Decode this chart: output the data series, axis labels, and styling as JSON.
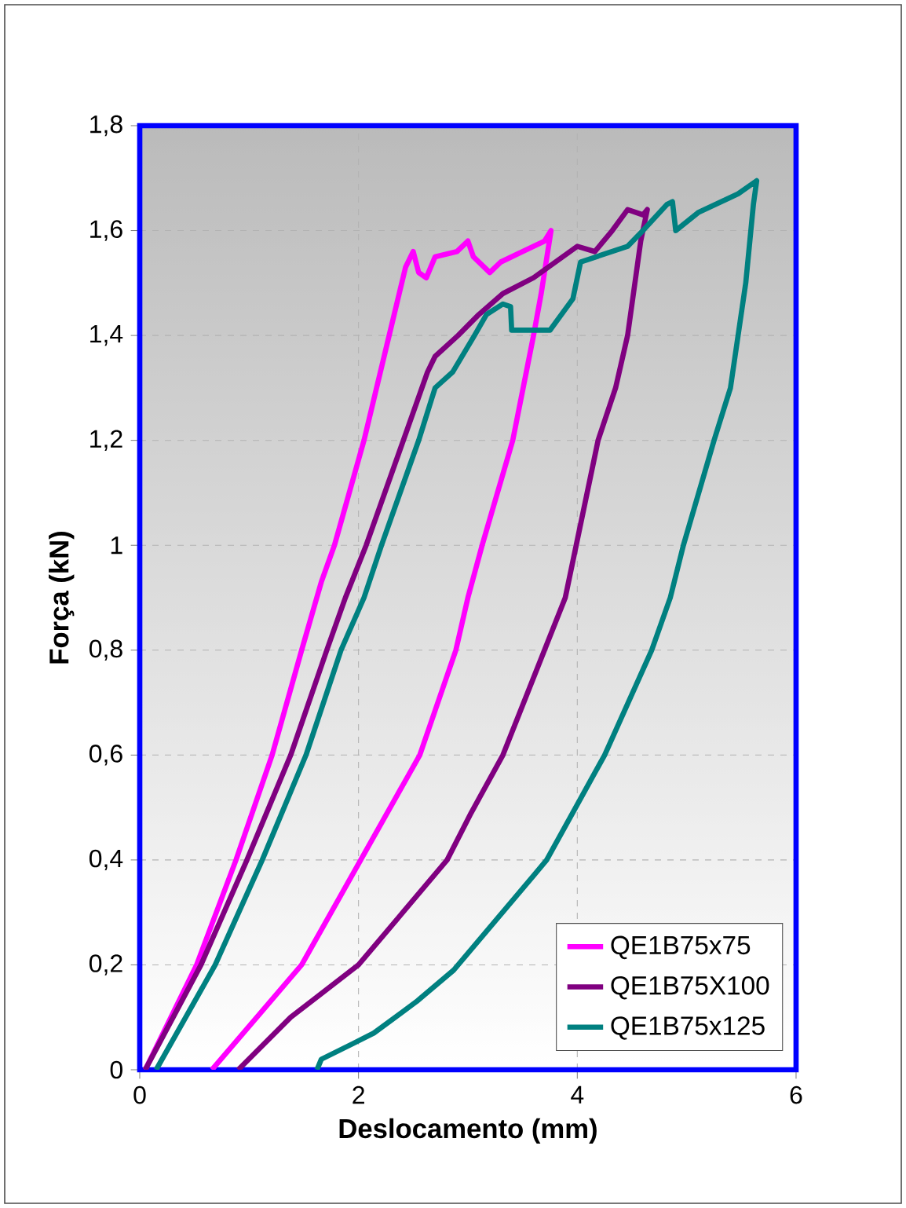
{
  "chart_data": {
    "type": "line",
    "xlabel": "Deslocamento (mm)",
    "ylabel": "Força (kN)",
    "xlim": [
      0,
      6
    ],
    "ylim": [
      0,
      1.8
    ],
    "xticks": [
      0,
      2,
      4,
      6
    ],
    "yticks": [
      0,
      {
        "value": 0.2,
        "label": "0,2"
      },
      {
        "value": 0.4,
        "label": "0,4"
      },
      {
        "value": 0.6,
        "label": "0,6"
      },
      {
        "value": 0.8,
        "label": "0,8"
      },
      1,
      {
        "value": 1.2,
        "label": "1,2"
      },
      {
        "value": 1.4,
        "label": "1,4"
      },
      {
        "value": 1.6,
        "label": "1,6"
      },
      {
        "value": 1.8,
        "label": "1,8"
      }
    ],
    "grid": true,
    "legend": "bottom right",
    "marker": "none",
    "line_style": "solid",
    "series": [
      {
        "name": "QE1B75x75",
        "color": "#ff00ff",
        "x": [
          0.05,
          0.52,
          0.88,
          1.21,
          1.48,
          1.66,
          1.78,
          2.05,
          2.28,
          2.43,
          2.5,
          2.55,
          2.62,
          2.7,
          2.9,
          3.0,
          3.05,
          3.2,
          3.3,
          3.5,
          3.7,
          3.76,
          3.67,
          3.6,
          3.41,
          3.13,
          3.0,
          2.89,
          2.56,
          2.02,
          1.48,
          0.66
        ],
        "values": [
          0,
          0.2,
          0.4,
          0.6,
          0.8,
          0.93,
          1.0,
          1.2,
          1.4,
          1.53,
          1.56,
          1.52,
          1.51,
          1.55,
          1.56,
          1.58,
          1.55,
          1.52,
          1.54,
          1.56,
          1.58,
          1.6,
          1.48,
          1.4,
          1.2,
          1.0,
          0.9,
          0.8,
          0.6,
          0.4,
          0.2,
          0
        ]
      },
      {
        "name": "QE1B75X100",
        "color": "#800080",
        "x": [
          0.05,
          0.56,
          0.98,
          1.38,
          1.71,
          1.88,
          2.07,
          2.41,
          2.63,
          2.7,
          2.91,
          3.1,
          3.32,
          3.6,
          4.0,
          4.16,
          4.32,
          4.46,
          4.6,
          4.64,
          4.58,
          4.46,
          4.35,
          4.19,
          3.99,
          3.89,
          3.7,
          3.32,
          3.03,
          2.81,
          2.0,
          1.38,
          0.9
        ],
        "values": [
          0,
          0.2,
          0.4,
          0.6,
          0.8,
          0.9,
          1.0,
          1.2,
          1.33,
          1.36,
          1.4,
          1.44,
          1.48,
          1.51,
          1.57,
          1.56,
          1.6,
          1.64,
          1.63,
          1.64,
          1.58,
          1.4,
          1.3,
          1.2,
          1.0,
          0.9,
          0.8,
          0.6,
          0.49,
          0.4,
          0.2,
          0.1,
          0
        ]
      },
      {
        "name": "QE1B75x125",
        "color": "#008080",
        "x": [
          0.15,
          0.69,
          1.12,
          1.52,
          1.84,
          2.05,
          2.21,
          2.55,
          2.7,
          2.86,
          3.06,
          3.17,
          3.32,
          3.39,
          3.4,
          3.75,
          3.96,
          4.03,
          4.46,
          4.6,
          4.82,
          4.87,
          4.9,
          5.11,
          5.47,
          5.64,
          5.61,
          5.54,
          5.4,
          5.25,
          4.97,
          4.85,
          4.68,
          4.25,
          3.72,
          3.6,
          2.87,
          2.53,
          2.14,
          1.95,
          1.66,
          1.62
        ],
        "values": [
          0,
          0.2,
          0.4,
          0.6,
          0.8,
          0.9,
          1.0,
          1.2,
          1.3,
          1.33,
          1.4,
          1.44,
          1.46,
          1.455,
          1.41,
          1.41,
          1.47,
          1.54,
          1.57,
          1.6,
          1.65,
          1.655,
          1.6,
          1.635,
          1.67,
          1.695,
          1.65,
          1.5,
          1.3,
          1.2,
          1.0,
          0.9,
          0.8,
          0.6,
          0.4,
          0.37,
          0.19,
          0.13,
          0.07,
          0.05,
          0.02,
          0
        ]
      }
    ]
  }
}
